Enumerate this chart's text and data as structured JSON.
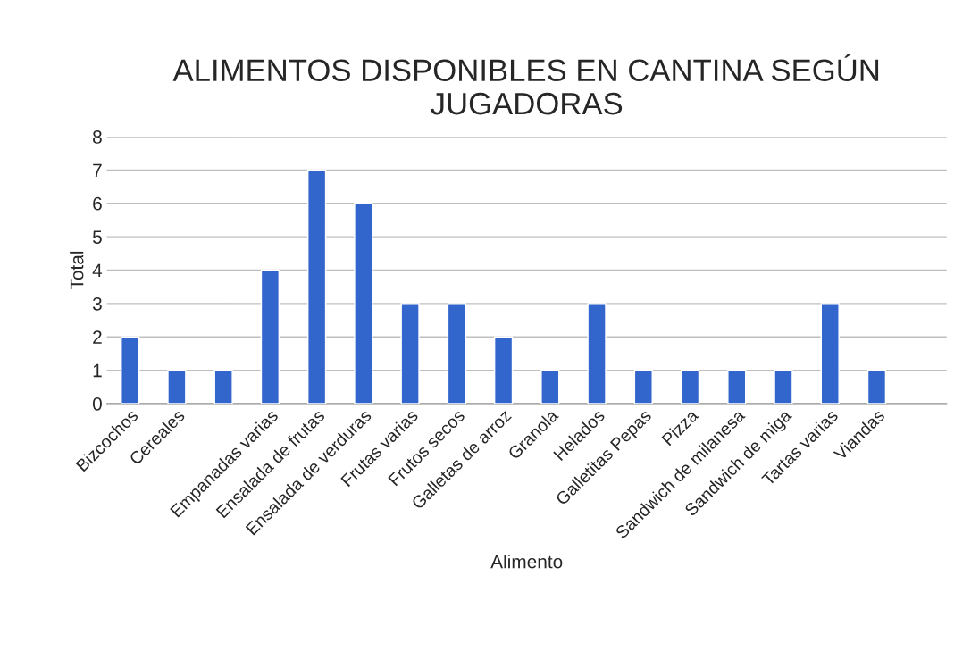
{
  "chart_data": {
    "type": "bar",
    "title": "ALIMENTOS DISPONIBLES EN CANTINA SEGÚN\nJUGADORAS",
    "xlabel": "Alimento",
    "ylabel": "Total",
    "categories": [
      "Bizcochos",
      "Cereales",
      null,
      "Empanadas varias",
      "Ensalada de frutas",
      "Ensalada de verduras",
      "Frutas varias",
      "Frutos secos",
      "Galletas de arroz",
      "Granola",
      "Helados",
      "Galletitas Pepas",
      "Pizza",
      "Sandwich de milanesa",
      "Sandwich de miga",
      "Tartas varias",
      "Viandas",
      null
    ],
    "values": [
      2,
      1,
      1,
      4,
      7,
      6,
      3,
      3,
      2,
      1,
      3,
      1,
      1,
      1,
      1,
      3,
      1,
      null
    ],
    "color": "#3366cc",
    "ylim": [
      0,
      8
    ],
    "yticks": [
      0,
      1,
      2,
      3,
      4,
      5,
      6,
      7,
      8
    ],
    "grid": "y",
    "legend": false
  }
}
